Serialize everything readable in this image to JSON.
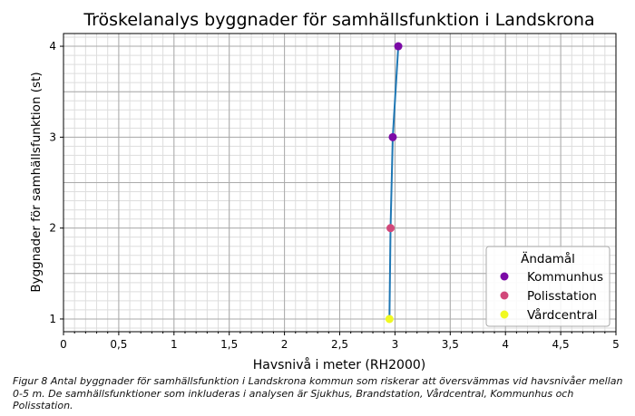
{
  "chart_data": {
    "type": "line",
    "title": "Tröskelanalys byggnader för samhällsfunktion i Landskrona",
    "xlabel": "Havsnivå i meter (RH2000)",
    "ylabel": "Byggnader för samhällsfunktion (st)",
    "xlim": [
      0,
      5
    ],
    "ylim": [
      0.86,
      4.14
    ],
    "xticks": [
      0,
      0.5,
      1,
      1.5,
      2,
      2.5,
      3,
      3.5,
      4,
      4.5,
      5
    ],
    "xtick_labels": [
      "0",
      "0,5",
      "1",
      "1,5",
      "2",
      "2,5",
      "3",
      "3,5",
      "4",
      "4,5",
      "5"
    ],
    "yticks": [
      1,
      2,
      3,
      4
    ],
    "ytick_labels": [
      "1",
      "2",
      "3",
      "4"
    ],
    "grid": true,
    "line_color": "#1f77b4",
    "points": [
      {
        "x": 2.95,
        "y": 1,
        "category": "Vårdcentral"
      },
      {
        "x": 2.96,
        "y": 2,
        "category": "Polisstation"
      },
      {
        "x": 2.98,
        "y": 3,
        "category": "Kommunhus"
      },
      {
        "x": 3.03,
        "y": 4,
        "category": "Kommunhus"
      }
    ],
    "legend": {
      "title": "Ändamål",
      "placement": "lower-right",
      "entries": [
        {
          "label": "Kommunhus",
          "color": "#7b0aa6"
        },
        {
          "label": "Polisstation",
          "color": "#d1487a"
        },
        {
          "label": "Vårdcentral",
          "color": "#f0f921"
        }
      ]
    }
  },
  "caption": "Figur 8 Antal byggnader för samhällsfunktion i Landskrona kommun som riskerar att översvämmas vid havsnivåer mellan 0-5 m. De samhällsfunktioner som inkluderas i analysen är Sjukhus, Brandstation, Vårdcentral, Kommunhus och Polisstation."
}
